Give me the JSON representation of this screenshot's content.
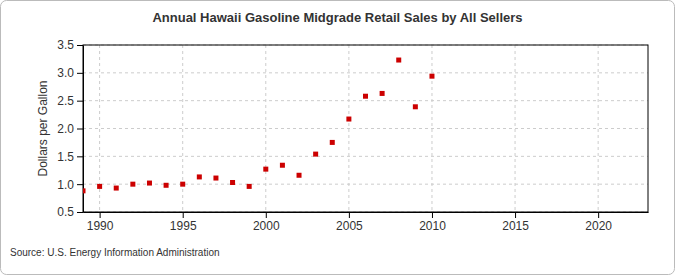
{
  "chart_data": {
    "type": "scatter",
    "title": "Annual Hawaii Gasoline Midgrade Retail Sales by All Sellers",
    "y_label": "Dollars per Gallon",
    "source": "Source: U.S. Energy Information Administration",
    "x": [
      1989,
      1990,
      1991,
      1992,
      1993,
      1994,
      1995,
      1996,
      1997,
      1998,
      1999,
      2000,
      2001,
      2002,
      2003,
      2004,
      2005,
      2006,
      2007,
      2008,
      2009,
      2010
    ],
    "values": [
      0.88,
      0.96,
      0.93,
      1.0,
      1.02,
      0.98,
      1.0,
      1.13,
      1.11,
      1.03,
      0.96,
      1.27,
      1.34,
      1.16,
      1.54,
      1.75,
      2.17,
      2.58,
      2.63,
      3.23,
      2.39,
      2.94
    ],
    "color": "#cc0000",
    "marker": "square",
    "xlim": [
      1989,
      2023
    ],
    "xticks": [
      1990,
      1995,
      2000,
      2005,
      2010,
      2015,
      2020
    ],
    "ylim": [
      0.5,
      3.5
    ],
    "yticks": [
      {
        "value": 0.5,
        "label": "0.5"
      },
      {
        "value": 1.0,
        "label": "1.0"
      },
      {
        "value": 1.5,
        "label": "1.5"
      },
      {
        "value": 2.0,
        "label": "2.0"
      },
      {
        "value": 2.5,
        "label": "2.5"
      },
      {
        "value": 3.0,
        "label": "3.0"
      },
      {
        "value": 3.5,
        "label": "3.5"
      }
    ],
    "grid": true
  }
}
